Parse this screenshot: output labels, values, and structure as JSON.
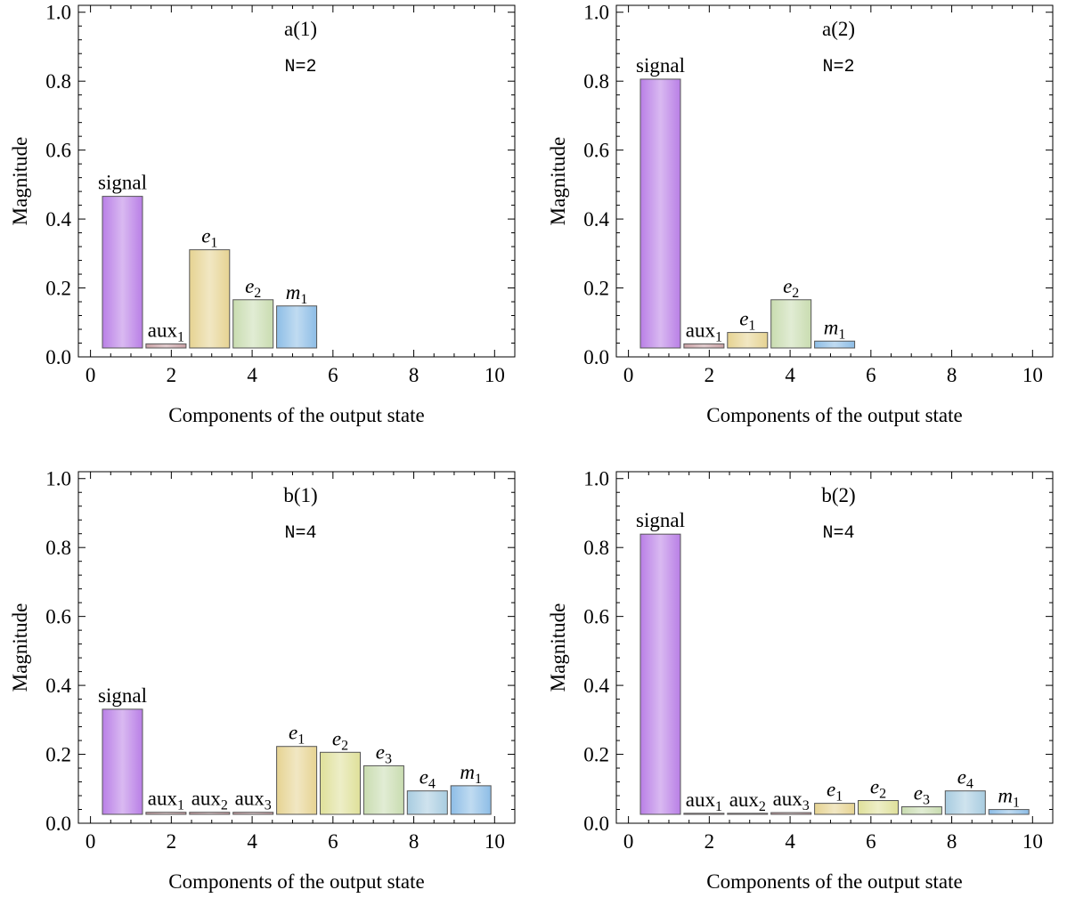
{
  "figure": {
    "panels": [
      {
        "key": "a1",
        "title": "a(1)",
        "subtitle": "N=2",
        "xlabel": "Components of the output state",
        "ylabel": "Magnitude",
        "xticks": [
          0,
          2,
          4,
          6,
          8,
          10
        ],
        "yticks": [
          0.0,
          0.2,
          0.4,
          0.6,
          0.8,
          1.0
        ],
        "ytick_labels": [
          "0.0",
          "0.2",
          "0.4",
          "0.6",
          "0.8",
          "1.0"
        ]
      },
      {
        "key": "a2",
        "title": "a(2)",
        "subtitle": "N=2",
        "xlabel": "Components of the output state",
        "ylabel": "Magnitude",
        "xticks": [
          0,
          2,
          4,
          6,
          8,
          10
        ],
        "yticks": [
          0.0,
          0.2,
          0.4,
          0.6,
          0.8,
          1.0
        ],
        "ytick_labels": [
          "0.0",
          "0.2",
          "0.4",
          "0.6",
          "0.8",
          "1.0"
        ]
      },
      {
        "key": "b1",
        "title": "b(1)",
        "subtitle": "N=4",
        "xlabel": "Components of the output state",
        "ylabel": "Magnitude",
        "xticks": [
          0,
          2,
          4,
          6,
          8,
          10
        ],
        "yticks": [
          0.0,
          0.2,
          0.4,
          0.6,
          0.8,
          1.0
        ],
        "ytick_labels": [
          "0.0",
          "0.2",
          "0.4",
          "0.6",
          "0.8",
          "1.0"
        ]
      },
      {
        "key": "b2",
        "title": "b(2)",
        "subtitle": "N=4",
        "xlabel": "Components of the output state",
        "ylabel": "Magnitude",
        "xticks": [
          0,
          2,
          4,
          6,
          8,
          10
        ],
        "yticks": [
          0.0,
          0.2,
          0.4,
          0.6,
          0.8,
          1.0
        ],
        "ytick_labels": [
          "0.0",
          "0.2",
          "0.4",
          "0.6",
          "0.8",
          "1.0"
        ]
      }
    ]
  },
  "chart_data": [
    {
      "type": "bar",
      "title": "a(1)",
      "subtitle": "N=2",
      "xlabel": "Components of the output state",
      "ylabel": "Magnitude",
      "xlim": [
        -0.3,
        10.5
      ],
      "ylim": [
        0,
        1.02
      ],
      "categories": [
        {
          "base": "signal",
          "sub": "",
          "italic": false
        },
        {
          "base": "aux",
          "sub": "1",
          "italic": false
        },
        {
          "base": "e",
          "sub": "1",
          "italic": true
        },
        {
          "base": "e",
          "sub": "2",
          "italic": true
        },
        {
          "base": "m",
          "sub": "1",
          "italic": true
        }
      ],
      "values": [
        0.44,
        0.012,
        0.285,
        0.14,
        0.122
      ],
      "colors": [
        "#b97fe6",
        "#c9a0a4",
        "#e6d392",
        "#c9dcb0",
        "#8dbde6"
      ]
    },
    {
      "type": "bar",
      "title": "a(2)",
      "subtitle": "N=2",
      "xlabel": "Components of the output state",
      "ylabel": "Magnitude",
      "xlim": [
        -0.3,
        10.5
      ],
      "ylim": [
        0,
        1.02
      ],
      "categories": [
        {
          "base": "signal",
          "sub": "",
          "italic": false
        },
        {
          "base": "aux",
          "sub": "1",
          "italic": false
        },
        {
          "base": "e",
          "sub": "1",
          "italic": true
        },
        {
          "base": "e",
          "sub": "2",
          "italic": true
        },
        {
          "base": "m",
          "sub": "1",
          "italic": true
        }
      ],
      "values": [
        0.78,
        0.012,
        0.045,
        0.14,
        0.02
      ],
      "colors": [
        "#b97fe6",
        "#c9a0a4",
        "#e6d392",
        "#c9dcb0",
        "#8dbde6"
      ]
    },
    {
      "type": "bar",
      "title": "b(1)",
      "subtitle": "N=4",
      "xlabel": "Components of the output state",
      "ylabel": "Magnitude",
      "xlim": [
        -0.3,
        10.5
      ],
      "ylim": [
        0,
        1.02
      ],
      "categories": [
        {
          "base": "signal",
          "sub": "",
          "italic": false
        },
        {
          "base": "aux",
          "sub": "1",
          "italic": false
        },
        {
          "base": "aux",
          "sub": "2",
          "italic": false
        },
        {
          "base": "aux",
          "sub": "3",
          "italic": false
        },
        {
          "base": "e",
          "sub": "1",
          "italic": true
        },
        {
          "base": "e",
          "sub": "2",
          "italic": true
        },
        {
          "base": "e",
          "sub": "3",
          "italic": true
        },
        {
          "base": "e",
          "sub": "4",
          "italic": true
        },
        {
          "base": "m",
          "sub": "1",
          "italic": true
        }
      ],
      "values": [
        0.305,
        0.006,
        0.006,
        0.006,
        0.197,
        0.18,
        0.141,
        0.068,
        0.083
      ],
      "colors": [
        "#b97fe6",
        "#c9a0a4",
        "#c9a0a4",
        "#c9a0a4",
        "#e6d392",
        "#dfe09a",
        "#c9dcb0",
        "#a8cce0",
        "#8dbde6"
      ]
    },
    {
      "type": "bar",
      "title": "b(2)",
      "subtitle": "N=4",
      "xlabel": "Components of the output state",
      "ylabel": "Magnitude",
      "xlim": [
        -0.3,
        10.5
      ],
      "ylim": [
        0,
        1.02
      ],
      "categories": [
        {
          "base": "signal",
          "sub": "",
          "italic": false
        },
        {
          "base": "aux",
          "sub": "1",
          "italic": false
        },
        {
          "base": "aux",
          "sub": "2",
          "italic": false
        },
        {
          "base": "aux",
          "sub": "3",
          "italic": false
        },
        {
          "base": "e",
          "sub": "1",
          "italic": true
        },
        {
          "base": "e",
          "sub": "2",
          "italic": true
        },
        {
          "base": "e",
          "sub": "3",
          "italic": true
        },
        {
          "base": "e",
          "sub": "4",
          "italic": true
        },
        {
          "base": "m",
          "sub": "1",
          "italic": true
        }
      ],
      "values": [
        0.813,
        0.002,
        0.002,
        0.005,
        0.032,
        0.04,
        0.022,
        0.068,
        0.014
      ],
      "colors": [
        "#b97fe6",
        "#c9a0a4",
        "#c9a0a4",
        "#c9a0a4",
        "#e6d392",
        "#dfe09a",
        "#c9dcb0",
        "#a8cce0",
        "#8dbde6"
      ]
    }
  ]
}
